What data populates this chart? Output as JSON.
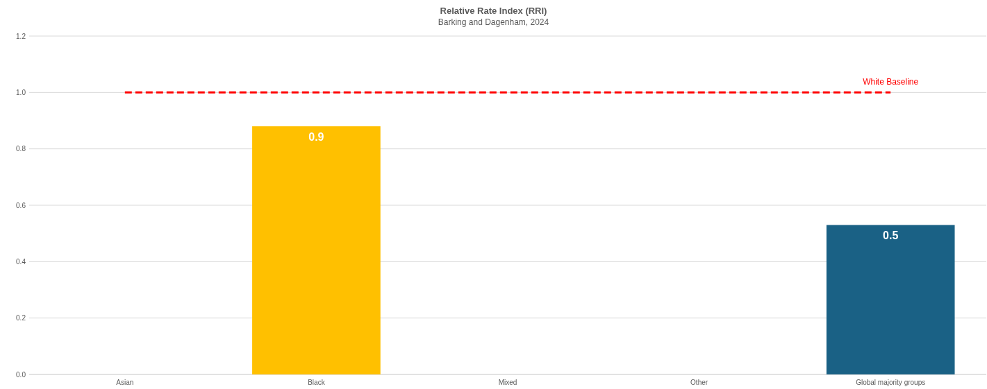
{
  "chart_data": {
    "type": "bar",
    "title": "Relative Rate Index (RRI)",
    "subtitle": "Barking and Dagenham, 2024",
    "categories": [
      "Asian",
      "Black",
      "Mixed",
      "Other",
      "Global majority groups"
    ],
    "values": [
      null,
      0.88,
      null,
      null,
      0.53
    ],
    "colors": [
      null,
      "#ffc000",
      null,
      null,
      "#1a6185"
    ],
    "value_labels": [
      null,
      "0.9",
      null,
      null,
      "0.5"
    ],
    "ylim": [
      0,
      1.2
    ],
    "yticks": [
      {
        "value": 0,
        "label": "0.0"
      },
      {
        "value": 0.2,
        "label": "0.2"
      },
      {
        "value": 0.4,
        "label": "0.4"
      },
      {
        "value": 0.6,
        "label": "0.6"
      },
      {
        "value": 0.8,
        "label": "0.8"
      },
      {
        "value": 1,
        "label": "1.0"
      },
      {
        "value": 1.2,
        "label": "1.2"
      }
    ],
    "grid": "y",
    "ref_lines": [
      {
        "axis": "y",
        "value": 1,
        "label": "White Baseline",
        "color": "#ff0000",
        "line_style": "dashed"
      }
    ]
  }
}
